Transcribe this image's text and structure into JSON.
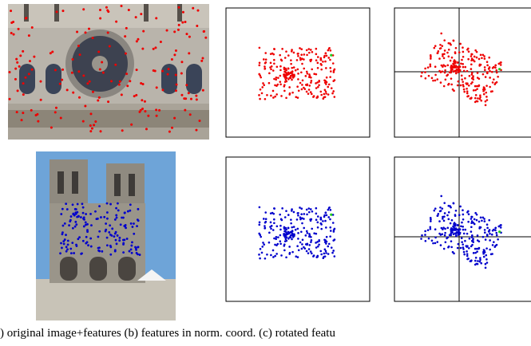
{
  "caption": ") original image+features (b) features in norm. coord. (c) rotated featu"
}
